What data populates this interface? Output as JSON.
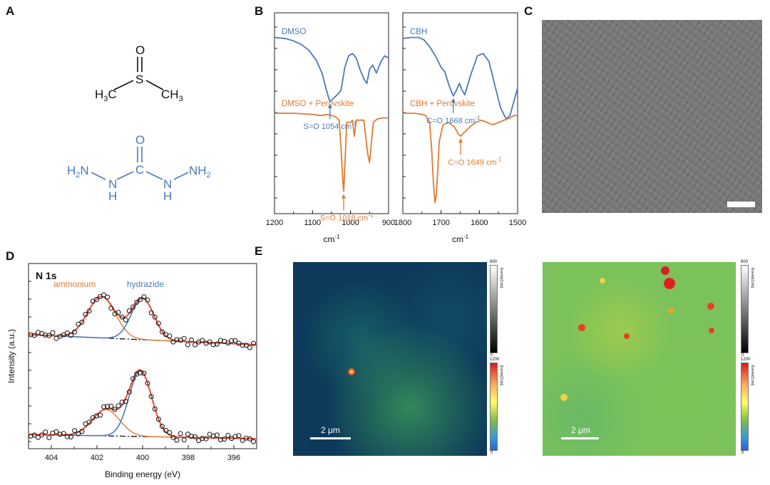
{
  "panels": {
    "A": "A",
    "B": "B",
    "C": "C",
    "D": "D",
    "E": "E"
  },
  "structures": {
    "dmso": {
      "o": "O",
      "s": "S",
      "ch3_left": "H",
      "ch3_left_sub": "3",
      "ch3_left_c": "C",
      "ch3_right": "CH",
      "ch3_right_sub": "3"
    },
    "cbh": {
      "o": "O",
      "c": "C",
      "nh2_left": "H",
      "nh2_left_sub": "2",
      "nh2_left_n": "N",
      "nh_left": "N",
      "h_left": "H",
      "nh_right": "N",
      "h_right": "H",
      "nh2_right": "NH",
      "nh2_right_sub": "2"
    }
  },
  "chart_data": [
    {
      "type": "line",
      "title": "",
      "xlabel": "cm-1",
      "xlabel_base": "cm",
      "xlabel_sup": "-1",
      "ylabel": "",
      "xlim": [
        1200,
        900
      ],
      "x_ticks": [
        "1200",
        "1100",
        "1000",
        "900"
      ],
      "series": [
        {
          "name": "DMSO",
          "color": "#4a7ab8",
          "x": [
            1200,
            1170,
            1150,
            1130,
            1110,
            1090,
            1075,
            1065,
            1058,
            1054,
            1045,
            1035,
            1025,
            1015,
            1005,
            995,
            985,
            975,
            965,
            957,
            950,
            942,
            932,
            920,
            910,
            900
          ],
          "y": [
            86,
            85,
            83,
            80,
            75,
            66,
            55,
            42,
            34,
            30,
            33,
            36,
            40,
            60,
            70,
            72,
            68,
            58,
            50,
            46,
            58,
            62,
            55,
            65,
            70,
            68
          ]
        },
        {
          "name": "DMSO + Perovskite",
          "color": "#e07b30",
          "x": [
            1200,
            1150,
            1100,
            1080,
            1060,
            1050,
            1040,
            1030,
            1025,
            1020,
            1018,
            1015,
            1010,
            1000,
            995,
            990,
            985,
            975,
            965,
            955,
            950,
            945,
            940,
            930,
            915,
            900
          ],
          "y": [
            20,
            20,
            19,
            18,
            19,
            18,
            17,
            14,
            -10,
            -40,
            -48,
            -25,
            12,
            12,
            14,
            0,
            14,
            14,
            14,
            -15,
            -23,
            -5,
            12,
            15,
            16,
            16
          ]
        }
      ],
      "annotations": [
        {
          "text": "S=O 1054 cm",
          "sup": "-1",
          "x": 1054
        },
        {
          "text": "S=O 1018 cm",
          "sup": "-1",
          "x": 1018
        }
      ]
    },
    {
      "type": "line",
      "title": "",
      "xlabel": "cm-1",
      "xlabel_base": "cm",
      "xlabel_sup": "-1",
      "ylabel": "",
      "xlim": [
        1800,
        1500
      ],
      "x_ticks": [
        "1800",
        "1700",
        "1600",
        "1500"
      ],
      "series": [
        {
          "name": "CBH",
          "color": "#4a7ab8",
          "x": [
            1800,
            1780,
            1760,
            1745,
            1730,
            1715,
            1700,
            1690,
            1680,
            1672,
            1668,
            1660,
            1652,
            1645,
            1638,
            1630,
            1620,
            1605,
            1590,
            1575,
            1560,
            1545,
            1530,
            1520,
            1510,
            1500
          ],
          "y": [
            85,
            86,
            86,
            84,
            78,
            70,
            60,
            56,
            45,
            38,
            35,
            40,
            46,
            40,
            36,
            45,
            56,
            70,
            72,
            65,
            45,
            25,
            15,
            18,
            30,
            42
          ]
        },
        {
          "name": "CBH + Perovskite",
          "color": "#e07b30",
          "x": [
            1800,
            1770,
            1750,
            1740,
            1730,
            1725,
            1720,
            1716,
            1712,
            1705,
            1695,
            1680,
            1665,
            1655,
            1649,
            1640,
            1625,
            1610,
            1595,
            1580,
            1565,
            1550,
            1535,
            1520,
            1510,
            1500
          ],
          "y": [
            20,
            20,
            19,
            18,
            12,
            -10,
            -40,
            -58,
            -50,
            -5,
            10,
            12,
            8,
            2,
            0,
            3,
            8,
            12,
            14,
            12,
            10,
            12,
            14,
            16,
            18,
            18
          ]
        }
      ],
      "annotations": [
        {
          "text": "C=O 1668 cm",
          "sup": "-1",
          "x": 1668
        },
        {
          "text": "C=O 1649 cm",
          "sup": "-1",
          "x": 1649
        }
      ]
    },
    {
      "type": "scatter",
      "title": "N 1s",
      "xlabel": "Binding energy (eV)",
      "ylabel": "Intensity (a.u.)",
      "xlim": [
        405,
        395
      ],
      "x_ticks": [
        "404",
        "402",
        "400",
        "398",
        "396"
      ],
      "legend": [
        "ammonium",
        "hydrazide"
      ],
      "upper_components": {
        "ammonium_center": 401.8,
        "ammonium_height": 1.0,
        "hydrazide_center": 400.0,
        "hydrazide_height": 1.0
      },
      "lower_components": {
        "ammonium_center": 401.6,
        "ammonium_height": 0.4,
        "hydrazide_center": 400.1,
        "hydrazide_height": 1.0
      }
    }
  ],
  "eds_maps": [
    {
      "scalebar": "2 μm",
      "cbar_top": "600",
      "cbar_bottom": "0",
      "cbar_unit": "Events[Cnts]",
      "cbar2_top": "1200",
      "cbar2_bottom": "0",
      "cbar2_unit": "Events[Cnts]"
    },
    {
      "scalebar": "2 μm",
      "cbar_top": "600",
      "cbar_bottom": "0",
      "cbar_unit": "Events[Cnts]",
      "cbar2_top": "1200",
      "cbar2_bottom": "0",
      "cbar2_unit": "Events[Cnts]"
    }
  ],
  "colors": {
    "blue": "#4a7ab8",
    "orange": "#e07b30",
    "fit_red": "#e8503a"
  }
}
